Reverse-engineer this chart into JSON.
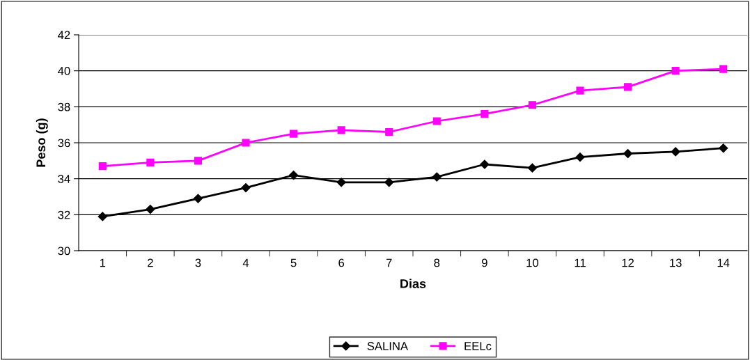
{
  "chart_data": {
    "type": "line",
    "xlabel": "Dias",
    "ylabel": "Peso (g)",
    "categories": [
      "1",
      "2",
      "3",
      "4",
      "5",
      "6",
      "7",
      "8",
      "9",
      "10",
      "11",
      "12",
      "13",
      "14"
    ],
    "ylim": [
      30,
      42
    ],
    "yticks": [
      30,
      32,
      34,
      36,
      38,
      40,
      42
    ],
    "grid": "y",
    "legend": "bottom",
    "line_style": "solid",
    "series": [
      {
        "name": "SALINA",
        "color": "#000000",
        "marker": "diamond",
        "values": [
          31.9,
          32.3,
          32.9,
          33.5,
          34.2,
          33.8,
          33.8,
          34.1,
          34.8,
          34.6,
          35.2,
          35.4,
          35.5,
          35.7
        ]
      },
      {
        "name": "EELc",
        "color": "#ff00ff",
        "marker": "square",
        "values": [
          34.7,
          34.9,
          35.0,
          36.0,
          36.5,
          36.7,
          36.6,
          37.2,
          37.6,
          38.1,
          38.9,
          39.1,
          40.0,
          40.1
        ]
      }
    ]
  }
}
